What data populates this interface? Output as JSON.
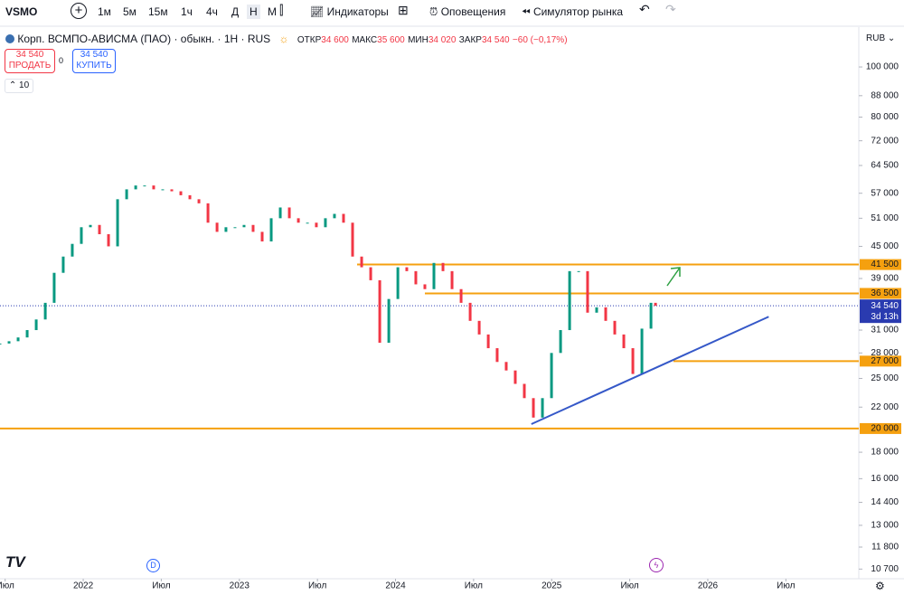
{
  "toolbar": {
    "symbol": "VSMO",
    "intervals": [
      "1м",
      "5м",
      "15м",
      "1ч",
      "4ч",
      "Д",
      "Н",
      "М"
    ],
    "indicators": "Индикаторы",
    "alerts": "Оповещения",
    "simulator": "Симулятор рынка"
  },
  "legend": {
    "name": "Корп. ВСМПО-АВИСМА (ПАО) · обыкн. · 1Н · RUS",
    "open_label": "ОТКР",
    "open": "34 600",
    "high_label": "МАКС",
    "high": "35 600",
    "low_label": "МИН",
    "low": "34 020",
    "close_label": "ЗАКР",
    "close": "34 540",
    "change": "−60 (−0,17%)"
  },
  "trade": {
    "sell_price": "34 540",
    "sell": "ПРОДАТЬ",
    "spread": "0",
    "buy_price": "34 540",
    "buy": "КУПИТЬ"
  },
  "volume_label": "10",
  "currency": "RUB",
  "chart_data": {
    "type": "candlestick",
    "yscale": "log",
    "colors": {
      "up": "#089981",
      "down": "#f23645",
      "level": "#f5a00f",
      "last": "#2a3bb0"
    },
    "x": [
      2021.467,
      2021.525,
      2021.583,
      2021.641,
      2021.699,
      2021.757,
      2021.814,
      2021.872,
      2021.93,
      2021.988,
      2022.046,
      2022.104,
      2022.162,
      2022.22,
      2022.278,
      2022.336,
      2022.393,
      2022.451,
      2022.509,
      2022.567,
      2022.625,
      2022.683,
      2022.741,
      2022.799,
      2022.857,
      2022.914,
      2022.972,
      2023.03,
      2023.088,
      2023.146,
      2023.204,
      2023.262,
      2023.32,
      2023.378,
      2023.436,
      2023.493,
      2023.551,
      2023.609,
      2023.667,
      2023.725,
      2023.783,
      2023.841,
      2023.899,
      2023.957,
      2024.015,
      2024.072,
      2024.13,
      2024.188,
      2024.246,
      2024.304,
      2024.362,
      2024.42,
      2024.478,
      2024.536,
      2024.594,
      2024.651,
      2024.709,
      2024.767,
      2024.825,
      2024.883,
      2024.941,
      2024.999,
      2025.057,
      2025.115,
      2025.173,
      2025.23,
      2025.288,
      2025.346,
      2025.404,
      2025.462,
      2025.52,
      2025.578,
      2025.636,
      2025.665
    ],
    "values": [
      29200,
      29500,
      30000,
      31000,
      32500,
      35000,
      40000,
      43000,
      45500,
      49000,
      49500,
      47500,
      45000,
      55500,
      58000,
      59000,
      59000,
      58000,
      58000,
      57500,
      56500,
      55500,
      54500,
      50000,
      48000,
      49000,
      49000,
      49500,
      48000,
      46000,
      51000,
      53500,
      51000,
      50000,
      50000,
      49000,
      51000,
      52000,
      50000,
      43000,
      41000,
      38700,
      29300,
      35600,
      41000,
      40300,
      38000,
      37200,
      41800,
      40300,
      37200,
      35000,
      32300,
      30400,
      28600,
      26900,
      25900,
      24400,
      22900,
      21000,
      22900,
      28000,
      31000,
      40300,
      40300,
      33500,
      34300,
      32300,
      30400,
      28600,
      25500,
      31200,
      35000,
      34540
    ],
    "xlim": [
      2021.467,
      2026.967
    ],
    "ylim": [
      10250,
      119400
    ],
    "xticks": [
      {
        "value": 2021.5,
        "label": "Июл"
      },
      {
        "value": 2022,
        "label": "2022"
      },
      {
        "value": 2022.5,
        "label": "Июл"
      },
      {
        "value": 2023,
        "label": "2023"
      },
      {
        "value": 2023.5,
        "label": "Июл"
      },
      {
        "value": 2024,
        "label": "2024"
      },
      {
        "value": 2024.5,
        "label": "Июл"
      },
      {
        "value": 2025,
        "label": "2025"
      },
      {
        "value": 2025.5,
        "label": "Июл"
      },
      {
        "value": 2026,
        "label": "2026"
      },
      {
        "value": 2026.5,
        "label": "Июл"
      }
    ],
    "yticks": [
      {
        "value": 100000,
        "label": "100 000"
      },
      {
        "value": 88000,
        "label": "88 000"
      },
      {
        "value": 80000,
        "label": "80 000"
      },
      {
        "value": 72000,
        "label": "72 000"
      },
      {
        "value": 64500,
        "label": "64 500"
      },
      {
        "value": 57000,
        "label": "57 000"
      },
      {
        "value": 51000,
        "label": "51 000"
      },
      {
        "value": 45000,
        "label": "45 000"
      },
      {
        "value": 39000,
        "label": "39 000"
      },
      {
        "value": 31000,
        "label": "31 000"
      },
      {
        "value": 28000,
        "label": "28 000"
      },
      {
        "value": 25000,
        "label": "25 000"
      },
      {
        "value": 22000,
        "label": "22 000"
      },
      {
        "value": 18000,
        "label": "18 000"
      },
      {
        "value": 16000,
        "label": "16 000"
      },
      {
        "value": 14400,
        "label": "14 400"
      },
      {
        "value": 13000,
        "label": "13 000"
      },
      {
        "value": 11800,
        "label": "11 800"
      },
      {
        "value": 10700,
        "label": "10 700"
      }
    ],
    "levels": [
      {
        "value": 41500,
        "label": "41 500",
        "from": 2023.754
      },
      {
        "value": 36500,
        "label": "36 500",
        "from": 2024.188
      },
      {
        "value": 27000,
        "label": "27 000",
        "from": 2025.78
      },
      {
        "value": 20000,
        "label": "20 000",
        "from": 2021.467
      }
    ],
    "trendline": {
      "x": [
        2024.87,
        2026.39
      ],
      "values": [
        20400,
        32900
      ],
      "color": "#3558c8"
    },
    "last": {
      "value": 34540,
      "label": "34 540",
      "countdown": "3d 13h"
    }
  }
}
